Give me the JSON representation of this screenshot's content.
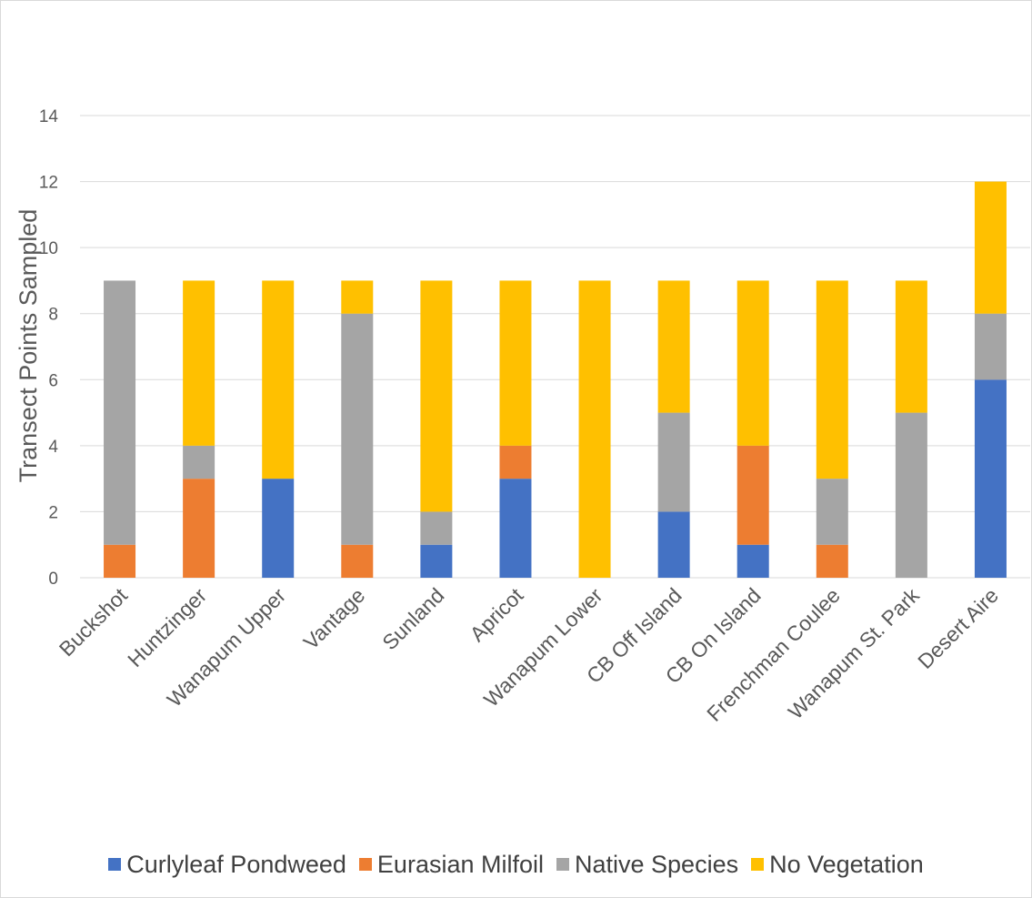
{
  "chart_data": {
    "type": "bar",
    "stacked": true,
    "title": "",
    "xlabel": "",
    "ylabel": "Transect  Points Sampled",
    "ylim": [
      0,
      14
    ],
    "yticks": [
      0,
      2,
      4,
      6,
      8,
      10,
      12,
      14
    ],
    "grid": true,
    "legend_position": "bottom",
    "categories": [
      "Buckshot",
      "Huntzinger",
      "Wanapum Upper",
      "Vantage",
      "Sunland",
      "Apricot",
      "Wanapum Lower",
      "CB Off Island",
      "CB On Island",
      "Frenchman Coulee",
      "Wanapum St. Park",
      "Desert Aire"
    ],
    "series": [
      {
        "name": "Curlyleaf Pondweed",
        "color": "#4472C4",
        "values": [
          0,
          0,
          3,
          0,
          1,
          3,
          0,
          2,
          1,
          0,
          0,
          6
        ]
      },
      {
        "name": "Eurasian Milfoil",
        "color": "#ED7D31",
        "values": [
          1,
          3,
          0,
          1,
          0,
          1,
          0,
          0,
          3,
          1,
          0,
          0
        ]
      },
      {
        "name": "Native Species",
        "color": "#A5A5A5",
        "values": [
          8,
          1,
          0,
          7,
          1,
          0,
          0,
          3,
          0,
          2,
          5,
          2
        ]
      },
      {
        "name": "No Vegetation",
        "color": "#FFC000",
        "values": [
          0,
          5,
          6,
          1,
          7,
          5,
          9,
          4,
          5,
          6,
          4,
          4
        ]
      }
    ]
  }
}
